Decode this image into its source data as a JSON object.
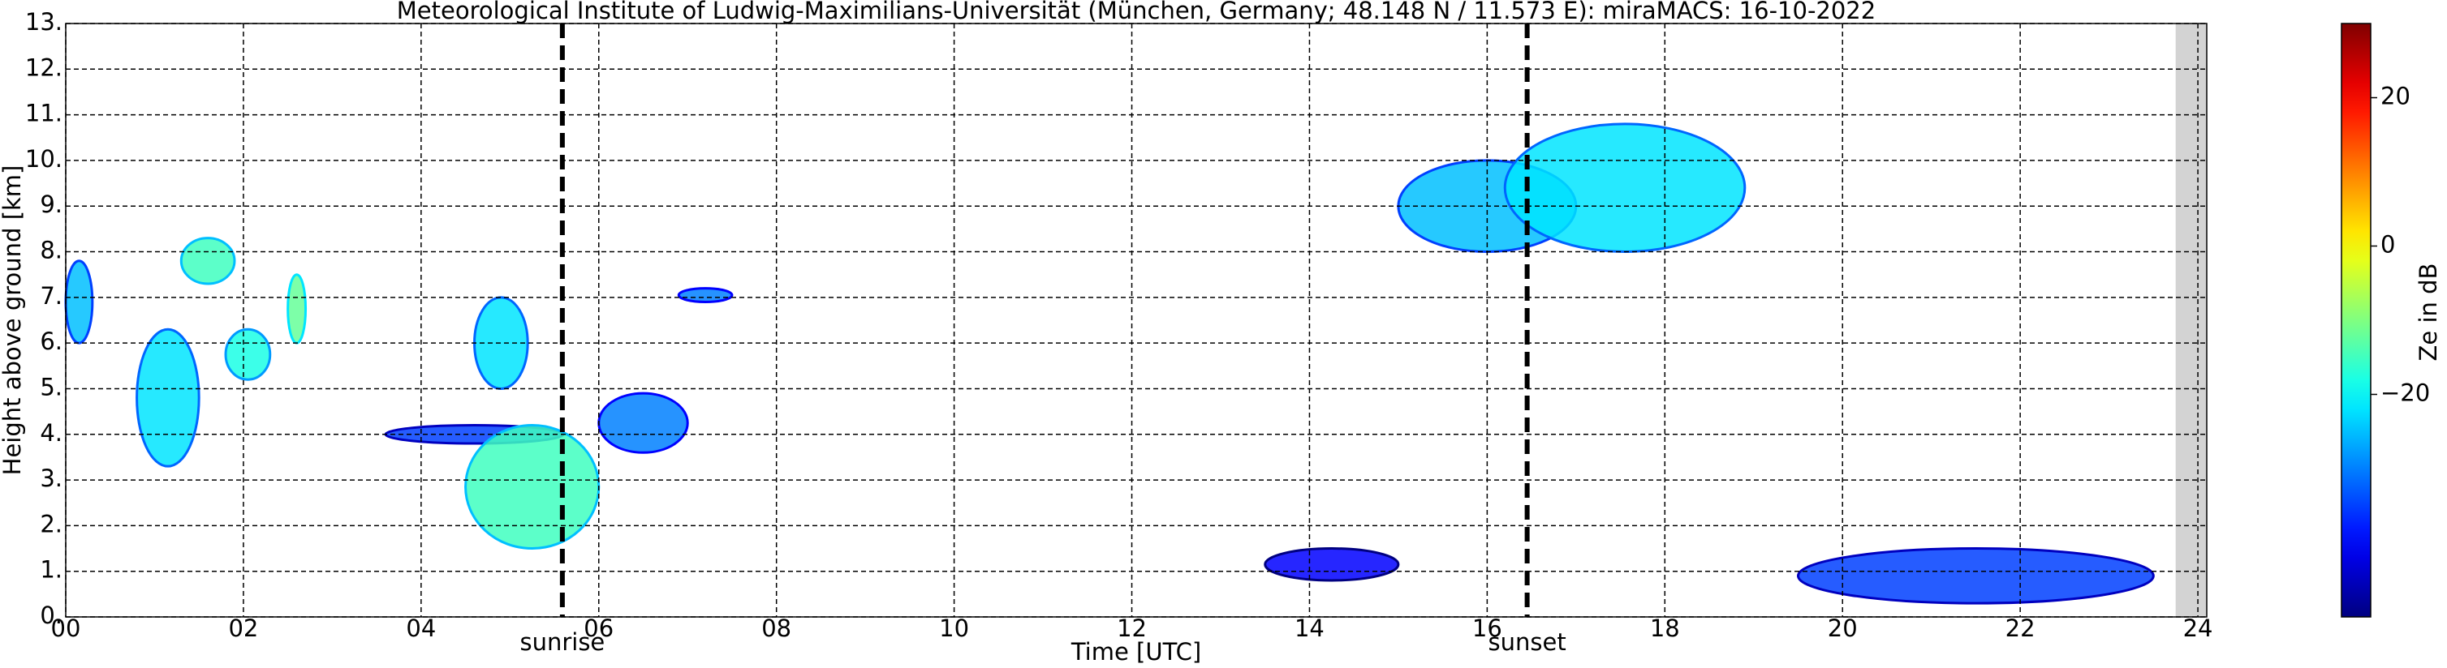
{
  "chart_data": {
    "type": "radar-time-height",
    "title": "Meteorological Institute of Ludwig-Maximilians-Universität (München, Germany; 48.148 N / 11.573 E):    miraMACS: 16-10-2022",
    "x_label": "Time [UTC]",
    "y_label": "Height above ground [km]",
    "colorbar_label": "Ze in dB",
    "xlim": [
      0,
      24.1
    ],
    "xticks": [
      {
        "value": 0,
        "label": "00"
      },
      {
        "value": 2,
        "label": "02"
      },
      {
        "value": 4,
        "label": "04"
      },
      {
        "value": 6,
        "label": "06"
      },
      {
        "value": 8,
        "label": "08"
      },
      {
        "value": 10,
        "label": "10"
      },
      {
        "value": 12,
        "label": "12"
      },
      {
        "value": 14,
        "label": "14"
      },
      {
        "value": 16,
        "label": "16"
      },
      {
        "value": 18,
        "label": "18"
      },
      {
        "value": 20,
        "label": "20"
      },
      {
        "value": 22,
        "label": "22"
      },
      {
        "value": 24,
        "label": "24"
      }
    ],
    "ylim": [
      0,
      13
    ],
    "yticks": [
      {
        "value": 0,
        "label": "0."
      },
      {
        "value": 1,
        "label": "1."
      },
      {
        "value": 2,
        "label": "2."
      },
      {
        "value": 3,
        "label": "3."
      },
      {
        "value": 4,
        "label": "4."
      },
      {
        "value": 5,
        "label": "5."
      },
      {
        "value": 6,
        "label": "6."
      },
      {
        "value": 7,
        "label": "7."
      },
      {
        "value": 8,
        "label": "8."
      },
      {
        "value": 9,
        "label": "9."
      },
      {
        "value": 10,
        "label": "10."
      },
      {
        "value": 11,
        "label": "11."
      },
      {
        "value": 12,
        "label": "12."
      },
      {
        "value": 13,
        "label": "13."
      }
    ],
    "zlim": [
      -50,
      30
    ],
    "zticks": [
      {
        "value": -20,
        "label": "−20"
      },
      0,
      20
    ],
    "grid": true,
    "no_data_after": 23.75,
    "events": [
      {
        "label": "sunrise",
        "time": 5.59
      },
      {
        "label": "sunset",
        "time": 16.45
      }
    ],
    "echoes": [
      {
        "t0": 0.0,
        "t1": 0.3,
        "h0": 6.0,
        "h1": 7.8,
        "ze": -25
      },
      {
        "t0": 0.8,
        "t1": 1.5,
        "h0": 3.3,
        "h1": 6.3,
        "ze": -22
      },
      {
        "t0": 1.3,
        "t1": 1.9,
        "h0": 7.3,
        "h1": 8.3,
        "ze": -15
      },
      {
        "t0": 1.8,
        "t1": 2.3,
        "h0": 5.2,
        "h1": 6.3,
        "ze": -18
      },
      {
        "t0": 2.5,
        "t1": 2.7,
        "h0": 6.0,
        "h1": 7.5,
        "ze": -12
      },
      {
        "t0": 3.6,
        "t1": 5.6,
        "h0": 3.8,
        "h1": 4.2,
        "ze": -35
      },
      {
        "t0": 4.5,
        "t1": 6.0,
        "h0": 1.5,
        "h1": 4.2,
        "ze": -15
      },
      {
        "t0": 4.6,
        "t1": 5.2,
        "h0": 5.0,
        "h1": 7.0,
        "ze": -22
      },
      {
        "t0": 6.0,
        "t1": 7.0,
        "h0": 3.6,
        "h1": 4.9,
        "ze": -30
      },
      {
        "t0": 6.9,
        "t1": 7.5,
        "h0": 6.9,
        "h1": 7.2,
        "ze": -30
      },
      {
        "t0": 15.0,
        "t1": 17.0,
        "h0": 8.0,
        "h1": 10.0,
        "ze": -25
      },
      {
        "t0": 16.2,
        "t1": 18.9,
        "h0": 8.0,
        "h1": 10.8,
        "ze": -22
      },
      {
        "t0": 13.5,
        "t1": 15.0,
        "h0": 0.8,
        "h1": 1.5,
        "ze": -40
      },
      {
        "t0": 19.5,
        "t1": 23.5,
        "h0": 0.3,
        "h1": 1.5,
        "ze": -35
      }
    ]
  }
}
